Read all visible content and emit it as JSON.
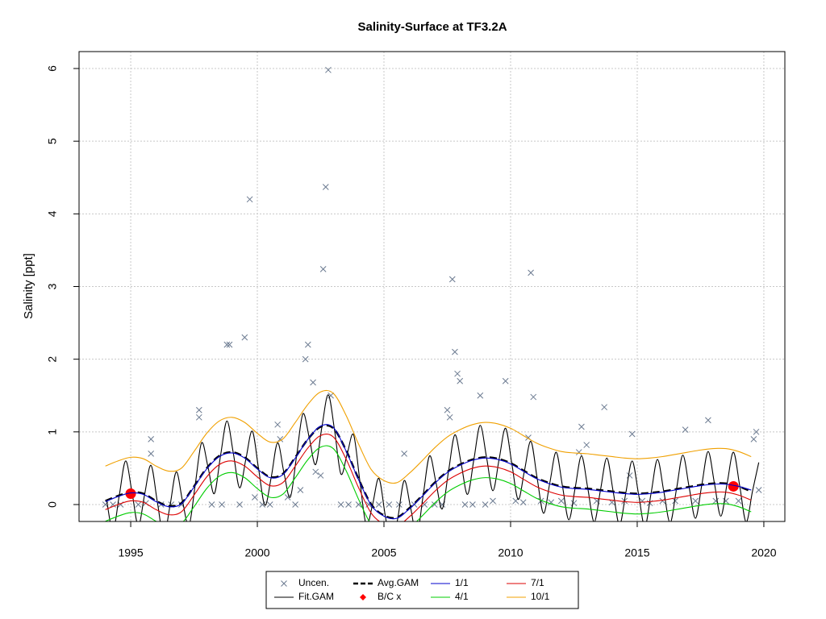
{
  "chart_data": {
    "type": "line",
    "title": "Salinity-Surface at TF3.2A",
    "y_label": "Salinity [ppt]",
    "xlim": [
      1992.96,
      2020.83
    ],
    "ylim": [
      -0.233,
      6.233
    ],
    "xticks": [
      1995,
      2000,
      2005,
      2010,
      2015,
      2020
    ],
    "yticks": [
      0,
      1,
      2,
      3,
      4,
      5,
      6
    ],
    "grid": true,
    "series": [
      {
        "name": "Uncen.",
        "kind": "points",
        "marker": "x",
        "color": "#6b7a90",
        "x": [
          1994.0,
          1994.3,
          1994.6,
          1995.3,
          1995.6,
          1995.8,
          1995.8,
          1996.2,
          1996.6,
          1997.0,
          1997.7,
          1997.7,
          1998.2,
          1998.6,
          1998.8,
          1998.9,
          1999.3,
          1999.5,
          1999.7,
          1999.9,
          2000.2,
          2000.5,
          2000.8,
          2000.9,
          2001.2,
          2001.5,
          2001.7,
          2001.9,
          2002.0,
          2002.2,
          2002.3,
          2002.5,
          2002.6,
          2002.7,
          2002.8,
          2002.9,
          2003.3,
          2003.6,
          2004.0,
          2004.4,
          2004.8,
          2005.2,
          2005.6,
          2005.8,
          2006.2,
          2006.6,
          2007.0,
          2007.3,
          2007.5,
          2007.6,
          2007.7,
          2007.8,
          2007.9,
          2008.0,
          2008.2,
          2008.5,
          2008.8,
          2009.0,
          2009.3,
          2009.8,
          2010.2,
          2010.5,
          2010.7,
          2010.8,
          2010.9,
          2011.2,
          2011.6,
          2012.0,
          2012.5,
          2012.7,
          2012.8,
          2013.0,
          2013.4,
          2013.7,
          2014.0,
          2014.5,
          2014.7,
          2014.8,
          2015.2,
          2015.5,
          2016.0,
          2016.5,
          2016.9,
          2017.3,
          2017.8,
          2018.1,
          2018.5,
          2019.0,
          2019.6,
          2019.7,
          2019.8
        ],
        "values": [
          0,
          0,
          0,
          0,
          0.02,
          0.9,
          0.7,
          0,
          0,
          0,
          1.2,
          1.3,
          0,
          0,
          2.2,
          2.2,
          0,
          2.3,
          4.2,
          0.1,
          0,
          0,
          1.1,
          0.9,
          0.1,
          0,
          0.2,
          2.0,
          2.2,
          1.68,
          0.45,
          0.4,
          3.24,
          4.37,
          5.98,
          1.5,
          0,
          0,
          0,
          0,
          0,
          0,
          0,
          0.7,
          0,
          0,
          0,
          0,
          1.3,
          1.2,
          3.1,
          2.1,
          1.8,
          1.7,
          0,
          0,
          1.5,
          0,
          0.05,
          1.7,
          0.05,
          0.03,
          0.92,
          3.19,
          1.48,
          0.05,
          0.03,
          0.05,
          0.02,
          0.72,
          1.07,
          0.82,
          0.05,
          1.34,
          0.03,
          0.05,
          0.4,
          0.97,
          0.05,
          0.02,
          0.05,
          0.05,
          1.03,
          0.05,
          1.16,
          0.05,
          0.05,
          0.05,
          0.9,
          1.0,
          0.2
        ]
      },
      {
        "name": "Fit.GAM",
        "kind": "line",
        "color": "#000000",
        "x": [
          1994.05,
          1994.3,
          1994.55,
          1994.8,
          1995.05,
          1995.3,
          1995.55,
          1995.8,
          1996.05,
          1996.3,
          1996.55,
          1996.8,
          1997.05,
          1997.3,
          1997.55,
          1997.8,
          1998.05,
          1998.3,
          1998.55,
          1998.8,
          1999.05,
          1999.3,
          1999.55,
          1999.8,
          2000.05,
          2000.3,
          2000.55,
          2000.8,
          2001.05,
          2001.3,
          2001.55,
          2001.8,
          2002.05,
          2002.3,
          2002.55,
          2002.8,
          2003.05,
          2003.3,
          2003.55,
          2003.8,
          2004.05,
          2004.3,
          2004.55,
          2004.8,
          2005.05,
          2005.3,
          2005.55,
          2005.8,
          2006.05,
          2006.3,
          2006.55,
          2006.8,
          2007.05,
          2007.3,
          2007.55,
          2007.8,
          2008.05,
          2008.3,
          2008.55,
          2008.8,
          2009.05,
          2009.3,
          2009.55,
          2009.8,
          2010.05,
          2010.3,
          2010.55,
          2010.8,
          2011.05,
          2011.3,
          2011.55,
          2011.8,
          2012.05,
          2012.3,
          2012.55,
          2012.8,
          2013.05,
          2013.3,
          2013.55,
          2013.8,
          2014.05,
          2014.3,
          2014.55,
          2014.8,
          2015.05,
          2015.3,
          2015.55,
          2015.8,
          2016.05,
          2016.3,
          2016.55,
          2016.8,
          2017.05,
          2017.3,
          2017.55,
          2017.8,
          2018.05,
          2018.3,
          2018.55,
          2018.8,
          2019.05,
          2019.3,
          2019.55,
          2019.8
        ],
        "values": [
          0.06,
          -0.36,
          0.13,
          0.6,
          0.17,
          -0.29,
          0.14,
          0.54,
          0.04,
          -0.44,
          -0.02,
          0.45,
          0.04,
          -0.29,
          0.28,
          0.85,
          0.52,
          0.15,
          0.68,
          1.15,
          0.71,
          0.23,
          0.63,
          1.01,
          0.49,
          -0.01,
          0.38,
          0.85,
          0.44,
          0.1,
          0.67,
          1.25,
          0.92,
          0.55,
          1.07,
          1.51,
          1.02,
          0.42,
          0.7,
          0.96,
          0.32,
          -0.28,
          0.0,
          0.36,
          -0.15,
          -0.61,
          -0.18,
          0.33,
          -0.04,
          -0.42,
          0.13,
          0.67,
          0.31,
          -0.06,
          0.46,
          0.96,
          0.56,
          0.14,
          0.62,
          1.09,
          0.65,
          0.19,
          0.63,
          1.05,
          0.56,
          0.07,
          0.47,
          0.87,
          0.36,
          -0.12,
          0.3,
          0.72,
          0.25,
          -0.21,
          0.23,
          0.67,
          0.22,
          -0.24,
          0.2,
          0.64,
          0.18,
          -0.28,
          0.16,
          0.6,
          0.15,
          -0.3,
          0.16,
          0.62,
          0.18,
          -0.25,
          0.21,
          0.68,
          0.24,
          -0.19,
          0.27,
          0.73,
          0.29,
          -0.16,
          0.29,
          0.72,
          0.25,
          -0.24,
          0.18,
          0.58
        ]
      },
      {
        "name": "Avg.GAM",
        "kind": "line",
        "dash": true,
        "color": "#000000",
        "x": [
          1994,
          1994.5,
          1995,
          1995.5,
          1996,
          1996.5,
          1997,
          1997.5,
          1998,
          1998.5,
          1999,
          1999.5,
          2000,
          2000.5,
          2001,
          2001.5,
          2002,
          2002.5,
          2003,
          2003.5,
          2004,
          2004.5,
          2005,
          2005.5,
          2006,
          2006.5,
          2007,
          2007.5,
          2008,
          2008.5,
          2009,
          2009.5,
          2010,
          2010.5,
          2011,
          2011.5,
          2012,
          2012.5,
          2013,
          2013.5,
          2014,
          2014.5,
          2015,
          2015.5,
          2016,
          2016.5,
          2017,
          2017.5,
          2018,
          2018.5,
          2019,
          2019.5
        ],
        "values": [
          0.05,
          0.12,
          0.17,
          0.15,
          0.05,
          -0.02,
          0.02,
          0.25,
          0.5,
          0.67,
          0.72,
          0.65,
          0.5,
          0.38,
          0.42,
          0.65,
          0.9,
          1.07,
          1.05,
          0.75,
          0.35,
          0.0,
          -0.15,
          -0.18,
          -0.05,
          0.12,
          0.3,
          0.45,
          0.55,
          0.62,
          0.65,
          0.63,
          0.57,
          0.47,
          0.37,
          0.3,
          0.25,
          0.23,
          0.22,
          0.2,
          0.18,
          0.16,
          0.15,
          0.16,
          0.18,
          0.21,
          0.24,
          0.27,
          0.29,
          0.29,
          0.25,
          0.18
        ]
      },
      {
        "name": "B/C x",
        "kind": "points",
        "marker": "dot",
        "color": "#ff0000",
        "x": [
          1995.0,
          2018.8
        ],
        "values": [
          0.15,
          0.25
        ]
      },
      {
        "name": "1/1",
        "kind": "line",
        "color": "#0000cd",
        "x": [
          1994,
          1994.5,
          1995,
          1995.5,
          1996,
          1996.5,
          1997,
          1997.5,
          1998,
          1998.5,
          1999,
          1999.5,
          2000,
          2000.5,
          2001,
          2001.5,
          2002,
          2002.5,
          2003,
          2003.5,
          2004,
          2004.5,
          2005,
          2005.5,
          2006,
          2006.5,
          2007,
          2007.5,
          2008,
          2008.5,
          2009,
          2009.5,
          2010,
          2010.5,
          2011,
          2011.5,
          2012,
          2012.5,
          2013,
          2013.5,
          2014,
          2014.5,
          2015,
          2015.5,
          2016,
          2016.5,
          2017,
          2017.5,
          2018,
          2018.5,
          2019,
          2019.5
        ],
        "values": [
          0.04,
          0.11,
          0.16,
          0.14,
          0.04,
          -0.03,
          0.01,
          0.24,
          0.49,
          0.66,
          0.71,
          0.64,
          0.49,
          0.37,
          0.41,
          0.64,
          0.9,
          1.08,
          1.06,
          0.74,
          0.34,
          -0.01,
          -0.16,
          -0.19,
          -0.06,
          0.11,
          0.29,
          0.44,
          0.54,
          0.61,
          0.64,
          0.62,
          0.56,
          0.46,
          0.36,
          0.29,
          0.24,
          0.22,
          0.21,
          0.19,
          0.17,
          0.15,
          0.14,
          0.15,
          0.17,
          0.2,
          0.23,
          0.26,
          0.28,
          0.28,
          0.25,
          0.2
        ]
      },
      {
        "name": "4/1",
        "kind": "line",
        "color": "#00cd00",
        "x": [
          1994,
          1994.5,
          1995,
          1995.5,
          1996,
          1996.5,
          1997,
          1997.5,
          1998,
          1998.5,
          1999,
          1999.5,
          2000,
          2000.5,
          2001,
          2001.5,
          2002,
          2002.5,
          2003,
          2003.5,
          2004,
          2004.5,
          2005,
          2005.5,
          2006,
          2006.5,
          2007,
          2007.5,
          2008,
          2008.5,
          2009,
          2009.5,
          2010,
          2010.5,
          2011,
          2011.5,
          2012,
          2012.5,
          2013,
          2013.5,
          2014,
          2014.5,
          2015,
          2015.5,
          2016,
          2016.5,
          2017,
          2017.5,
          2018,
          2018.5,
          2019,
          2019.5
        ],
        "values": [
          -0.23,
          -0.16,
          -0.11,
          -0.13,
          -0.23,
          -0.3,
          -0.26,
          -0.03,
          0.22,
          0.39,
          0.44,
          0.37,
          0.22,
          0.1,
          0.14,
          0.37,
          0.62,
          0.79,
          0.77,
          0.47,
          0.07,
          -0.28,
          -0.43,
          -0.46,
          -0.33,
          -0.16,
          0.02,
          0.17,
          0.27,
          0.34,
          0.37,
          0.35,
          0.29,
          0.19,
          0.09,
          0.02,
          -0.03,
          -0.05,
          -0.06,
          -0.08,
          -0.1,
          -0.12,
          -0.13,
          -0.12,
          -0.1,
          -0.07,
          -0.04,
          -0.01,
          0.01,
          0.01,
          -0.03,
          -0.1
        ]
      },
      {
        "name": "7/1",
        "kind": "line",
        "color": "#dd0000",
        "x": [
          1994,
          1994.5,
          1995,
          1995.5,
          1996,
          1996.5,
          1997,
          1997.5,
          1998,
          1998.5,
          1999,
          1999.5,
          2000,
          2000.5,
          2001,
          2001.5,
          2002,
          2002.5,
          2003,
          2003.5,
          2004,
          2004.5,
          2005,
          2005.5,
          2006,
          2006.5,
          2007,
          2007.5,
          2008,
          2008.5,
          2009,
          2009.5,
          2010,
          2010.5,
          2011,
          2011.5,
          2012,
          2012.5,
          2013,
          2013.5,
          2014,
          2014.5,
          2015,
          2015.5,
          2016,
          2016.5,
          2017,
          2017.5,
          2018,
          2018.5,
          2019,
          2019.5
        ],
        "values": [
          -0.07,
          0.0,
          0.05,
          0.03,
          -0.07,
          -0.14,
          -0.1,
          0.13,
          0.38,
          0.55,
          0.6,
          0.53,
          0.38,
          0.26,
          0.3,
          0.53,
          0.78,
          0.95,
          0.93,
          0.63,
          0.23,
          -0.12,
          -0.27,
          -0.3,
          -0.17,
          0.0,
          0.18,
          0.33,
          0.43,
          0.5,
          0.53,
          0.51,
          0.45,
          0.35,
          0.25,
          0.18,
          0.13,
          0.11,
          0.1,
          0.08,
          0.06,
          0.04,
          0.03,
          0.04,
          0.06,
          0.09,
          0.12,
          0.15,
          0.17,
          0.17,
          0.13,
          0.06
        ]
      },
      {
        "name": "10/1",
        "kind": "line",
        "color": "#f0a000",
        "x": [
          1994,
          1994.5,
          1995,
          1995.5,
          1996,
          1996.5,
          1997,
          1997.5,
          1998,
          1998.5,
          1999,
          1999.5,
          2000,
          2000.5,
          2001,
          2001.5,
          2002,
          2002.5,
          2003,
          2003.5,
          2004,
          2004.5,
          2005,
          2005.5,
          2006,
          2006.5,
          2007,
          2007.5,
          2008,
          2008.5,
          2009,
          2009.5,
          2010,
          2010.5,
          2011,
          2011.5,
          2012,
          2012.5,
          2013,
          2013.5,
          2014,
          2014.5,
          2015,
          2015.5,
          2016,
          2016.5,
          2017,
          2017.5,
          2018,
          2018.5,
          2019,
          2019.5
        ],
        "values": [
          0.53,
          0.6,
          0.65,
          0.63,
          0.53,
          0.46,
          0.5,
          0.73,
          0.98,
          1.15,
          1.2,
          1.13,
          0.98,
          0.86,
          0.9,
          1.13,
          1.38,
          1.55,
          1.53,
          1.23,
          0.83,
          0.48,
          0.33,
          0.3,
          0.43,
          0.6,
          0.78,
          0.93,
          1.03,
          1.1,
          1.13,
          1.11,
          1.05,
          0.95,
          0.85,
          0.78,
          0.73,
          0.71,
          0.7,
          0.68,
          0.66,
          0.64,
          0.63,
          0.64,
          0.66,
          0.69,
          0.72,
          0.75,
          0.77,
          0.77,
          0.73,
          0.66
        ]
      }
    ]
  }
}
